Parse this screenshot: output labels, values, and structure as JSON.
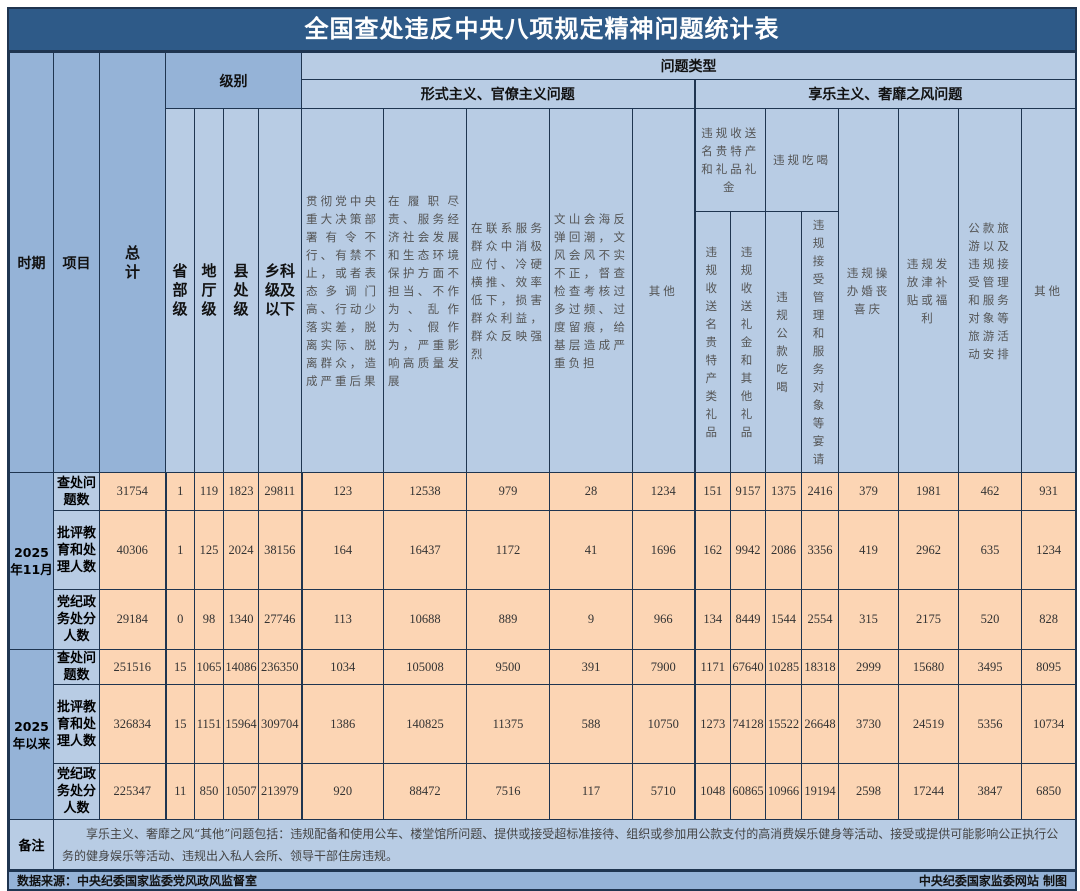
{
  "title": "全国查处违反中央八项规定精神问题统计表",
  "header": {
    "period": "时期",
    "item": "项目",
    "total": "总计",
    "level": "级别",
    "problem_type": "问题类型",
    "levels": [
      "省部级",
      "地厅级",
      "县处级",
      "乡科级及以下"
    ],
    "formalism": {
      "label": "形式主义、官僚主义问题",
      "cols": [
        "贯彻党中央重大决策部署有令不行、有禁不止，或者表态多调门高、行动少落实差，脱离实际、脱离群众，造成严重后果",
        "在履职尽责、服务经济社会发展和生态环境保护方面不担当、不作为、乱作为、假作为，严重影响高质量发展",
        "在联系服务群众中消极应付、冷硬横推、效率低下，损害群众利益，群众反映强烈",
        "文山会海反弹回潮，文风会风不实不正，督查检查考核过多过频、过度留痕，给基层造成严重负担",
        "其他"
      ]
    },
    "hedonism": {
      "label": "享乐主义、奢靡之风问题",
      "gifts": {
        "label": "违规收送名贵特产和礼品礼金",
        "cols": [
          "违规收送名贵特产类礼品",
          "违规收送礼金和其他礼品"
        ]
      },
      "dining": {
        "label": "违规吃喝",
        "cols": [
          "违规公款吃喝",
          "违规接受管理和服务对象等宴请"
        ]
      },
      "cols": [
        "违规操办婚丧喜庆",
        "违规发放津补贴或福利",
        "公款旅游以及违规接受管理和服务对象等旅游活动安排",
        "其他"
      ]
    }
  },
  "groups": [
    {
      "period": "2025年11月",
      "rows": [
        {
          "item": "查处问题数",
          "values": [
            "31754",
            "1",
            "119",
            "1823",
            "29811",
            "123",
            "12538",
            "979",
            "28",
            "1234",
            "151",
            "9157",
            "1375",
            "2416",
            "379",
            "1981",
            "462",
            "931"
          ]
        },
        {
          "item": "批评教育和处理人数",
          "values": [
            "40306",
            "1",
            "125",
            "2024",
            "38156",
            "164",
            "16437",
            "1172",
            "41",
            "1696",
            "162",
            "9942",
            "2086",
            "3356",
            "419",
            "2962",
            "635",
            "1234"
          ]
        },
        {
          "item": "党纪政务处分人数",
          "values": [
            "29184",
            "0",
            "98",
            "1340",
            "27746",
            "113",
            "10688",
            "889",
            "9",
            "966",
            "134",
            "8449",
            "1544",
            "2554",
            "315",
            "2175",
            "520",
            "828"
          ]
        }
      ]
    },
    {
      "period": "2025年以来",
      "rows": [
        {
          "item": "查处问题数",
          "values": [
            "251516",
            "15",
            "1065",
            "14086",
            "236350",
            "1034",
            "105008",
            "9500",
            "391",
            "7900",
            "1171",
            "67640",
            "10285",
            "18318",
            "2999",
            "15680",
            "3495",
            "8095"
          ]
        },
        {
          "item": "批评教育和处理人数",
          "values": [
            "326834",
            "15",
            "1151",
            "15964",
            "309704",
            "1386",
            "140825",
            "11375",
            "588",
            "10750",
            "1273",
            "74128",
            "15522",
            "26648",
            "3730",
            "24519",
            "5356",
            "10734"
          ]
        },
        {
          "item": "党纪政务处分人数",
          "values": [
            "225347",
            "11",
            "850",
            "10507",
            "213979",
            "920",
            "88472",
            "7516",
            "117",
            "5710",
            "1048",
            "60865",
            "10966",
            "19194",
            "2598",
            "17244",
            "3847",
            "6850"
          ]
        }
      ]
    }
  ],
  "note": {
    "label": "备注",
    "text": "享乐主义、奢靡之风“其他”问题包括：违规配备和使用公车、楼堂馆所问题、提供或接受超标准接待、组织或参加用公款支付的高消费娱乐健身等活动、接受或提供可能影响公正执行公务的健身娱乐等活动、违规出入私人会所、领导干部住房违规。"
  },
  "footer": {
    "source": "数据来源：中央纪委国家监委党风政风监督室",
    "credit": "中央纪委国家监委网站 制图"
  },
  "colors": {
    "title_bg": "#2e5a88",
    "header_bg": "#b8cce4",
    "header_dark": "#95b3d7",
    "data_bg": "#fcd5b4"
  }
}
